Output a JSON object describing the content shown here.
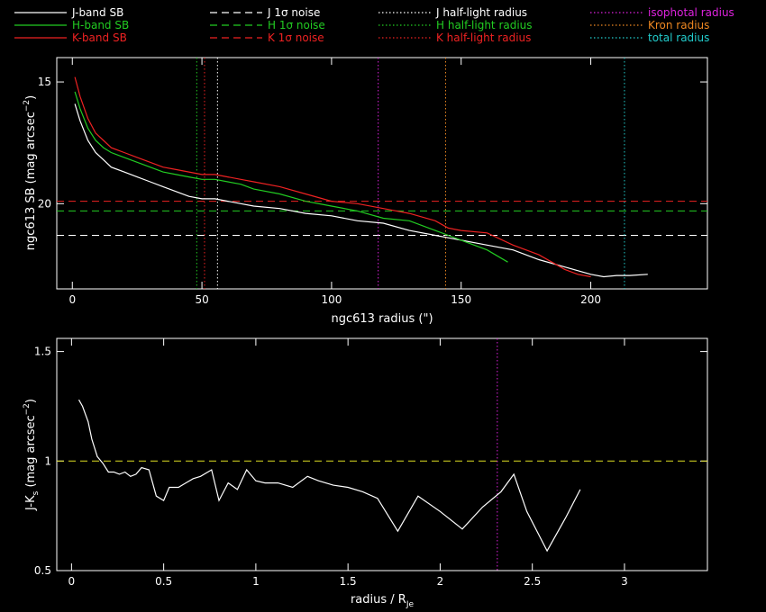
{
  "legend": [
    {
      "label": "J-band SB",
      "color": "#ffffff",
      "dash": "solid"
    },
    {
      "label": "H-band SB",
      "color": "#22cc22",
      "dash": "solid"
    },
    {
      "label": "K-band SB",
      "color": "#ee2222",
      "dash": "solid"
    },
    {
      "label": "J 1σ noise",
      "color": "#ffffff",
      "dash": "dashed"
    },
    {
      "label": "H 1σ noise",
      "color": "#22cc22",
      "dash": "dashed"
    },
    {
      "label": "K 1σ noise",
      "color": "#ee2222",
      "dash": "dashed"
    },
    {
      "label": "J half-light radius",
      "color": "#ffffff",
      "dash": "dotted"
    },
    {
      "label": "H half-light radius",
      "color": "#22cc22",
      "dash": "dotted"
    },
    {
      "label": "K half-light radius",
      "color": "#ee2222",
      "dash": "dotted"
    },
    {
      "label": "isophotal radius",
      "color": "#dd22dd",
      "dash": "dotted"
    },
    {
      "label": "Kron radius",
      "color": "#ee8822",
      "dash": "dotted"
    },
    {
      "label": "total radius",
      "color": "#22cccc",
      "dash": "dotted"
    }
  ],
  "chart_data": [
    {
      "type": "line",
      "xlabel": "ngc613 radius (\")",
      "ylabel": "ngc613 SB (mag arcsec^-2)",
      "xlim": [
        -6,
        245
      ],
      "ylim": [
        23.5,
        14.0
      ],
      "y_inverted": true,
      "xticks": [
        0,
        50,
        100,
        150,
        200
      ],
      "yticks": [
        15,
        20
      ],
      "series": [
        {
          "name": "J-band SB",
          "color": "#ffffff",
          "x": [
            1,
            3,
            6,
            9,
            12,
            15,
            20,
            25,
            30,
            35,
            40,
            45,
            50,
            55,
            60,
            65,
            70,
            80,
            90,
            100,
            110,
            120,
            130,
            140,
            145,
            150,
            160,
            170,
            180,
            190,
            200,
            205,
            210,
            215,
            222
          ],
          "y": [
            15.9,
            16.6,
            17.4,
            17.9,
            18.2,
            18.5,
            18.7,
            18.9,
            19.1,
            19.3,
            19.5,
            19.7,
            19.8,
            19.8,
            19.9,
            20.0,
            20.1,
            20.2,
            20.4,
            20.5,
            20.7,
            20.8,
            21.1,
            21.3,
            21.4,
            21.5,
            21.7,
            21.9,
            22.3,
            22.6,
            22.9,
            23.0,
            22.95,
            22.95,
            22.9
          ]
        },
        {
          "name": "H-band SB",
          "color": "#22cc22",
          "x": [
            1,
            3,
            6,
            9,
            12,
            15,
            20,
            25,
            30,
            35,
            40,
            45,
            50,
            55,
            60,
            65,
            70,
            80,
            90,
            100,
            110,
            120,
            130,
            140,
            145,
            150,
            160,
            168
          ],
          "y": [
            15.4,
            16.1,
            16.9,
            17.4,
            17.7,
            17.9,
            18.1,
            18.3,
            18.5,
            18.7,
            18.8,
            18.9,
            19.0,
            19.0,
            19.1,
            19.2,
            19.4,
            19.6,
            19.9,
            20.1,
            20.3,
            20.6,
            20.7,
            21.1,
            21.3,
            21.5,
            21.9,
            22.4
          ]
        },
        {
          "name": "K-band SB",
          "color": "#ee2222",
          "x": [
            1,
            3,
            6,
            9,
            12,
            15,
            20,
            25,
            30,
            35,
            40,
            45,
            50,
            55,
            60,
            65,
            70,
            80,
            90,
            100,
            110,
            120,
            130,
            140,
            145,
            150,
            160,
            170,
            180,
            190,
            195,
            200
          ],
          "y": [
            14.8,
            15.6,
            16.5,
            17.1,
            17.4,
            17.7,
            17.9,
            18.1,
            18.3,
            18.5,
            18.6,
            18.7,
            18.8,
            18.8,
            18.9,
            19.0,
            19.1,
            19.3,
            19.6,
            19.9,
            20.0,
            20.2,
            20.4,
            20.7,
            21.0,
            21.1,
            21.2,
            21.7,
            22.1,
            22.7,
            22.9,
            23.0
          ]
        }
      ],
      "hlines": [
        {
          "name": "J 1σ noise",
          "y": 21.3,
          "color": "#ffffff",
          "dash": "dashed"
        },
        {
          "name": "H 1σ noise",
          "y": 20.3,
          "color": "#22cc22",
          "dash": "dashed"
        },
        {
          "name": "K 1σ noise",
          "y": 19.9,
          "color": "#ee2222",
          "dash": "dashed"
        }
      ],
      "vlines": [
        {
          "name": "H half-light radius",
          "x": 48,
          "color": "#22cc22",
          "dash": "dotted"
        },
        {
          "name": "K half-light radius",
          "x": 51,
          "color": "#ee2222",
          "dash": "dotted"
        },
        {
          "name": "J half-light radius",
          "x": 56,
          "color": "#ffffff",
          "dash": "dotted"
        },
        {
          "name": "isophotal radius",
          "x": 118,
          "color": "#dd22dd",
          "dash": "dotted"
        },
        {
          "name": "Kron radius",
          "x": 144,
          "color": "#ee8822",
          "dash": "dotted"
        },
        {
          "name": "total radius",
          "x": 213,
          "color": "#22cccc",
          "dash": "dotted"
        }
      ]
    },
    {
      "type": "line",
      "xlabel": "radius / R_Je",
      "ylabel": "J-K_s (mag arcsec^-2)",
      "xlim": [
        -0.08,
        3.45
      ],
      "ylim": [
        0.5,
        1.56
      ],
      "xticks": [
        0,
        0.5,
        1,
        1.5,
        2,
        2.5,
        3
      ],
      "yticks": [
        0.5,
        1,
        1.5
      ],
      "series": [
        {
          "name": "J-Ks",
          "color": "#ffffff",
          "x": [
            0.04,
            0.06,
            0.09,
            0.11,
            0.14,
            0.17,
            0.2,
            0.23,
            0.26,
            0.29,
            0.32,
            0.35,
            0.38,
            0.42,
            0.46,
            0.5,
            0.53,
            0.58,
            0.62,
            0.66,
            0.7,
            0.76,
            0.8,
            0.85,
            0.9,
            0.95,
            1.0,
            1.05,
            1.12,
            1.2,
            1.28,
            1.34,
            1.42,
            1.5,
            1.58,
            1.66,
            1.77,
            1.88,
            2.0,
            2.12,
            2.23,
            2.33,
            2.4,
            2.47,
            2.58,
            2.68,
            2.76
          ],
          "y": [
            1.28,
            1.25,
            1.18,
            1.1,
            1.02,
            0.99,
            0.95,
            0.95,
            0.94,
            0.95,
            0.93,
            0.94,
            0.97,
            0.96,
            0.84,
            0.82,
            0.88,
            0.88,
            0.9,
            0.92,
            0.93,
            0.96,
            0.82,
            0.9,
            0.87,
            0.96,
            0.91,
            0.9,
            0.9,
            0.88,
            0.93,
            0.91,
            0.89,
            0.88,
            0.86,
            0.83,
            0.68,
            0.84,
            0.77,
            0.69,
            0.79,
            0.86,
            0.94,
            0.77,
            0.59,
            0.74,
            0.87
          ]
        }
      ],
      "hlines": [
        {
          "y": 1.0,
          "color": "#dddd22",
          "dash": "dashed"
        }
      ],
      "vlines": [
        {
          "x": 2.31,
          "color": "#dd22dd",
          "dash": "dotted"
        }
      ]
    }
  ]
}
